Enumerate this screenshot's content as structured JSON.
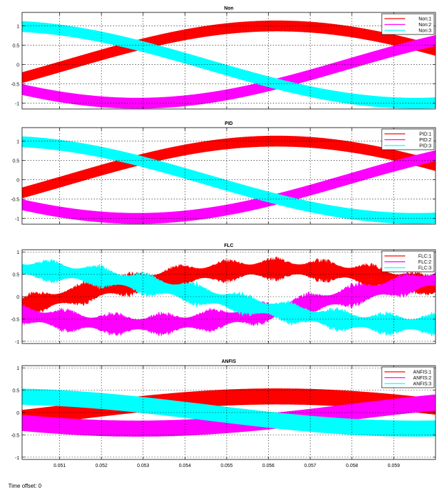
{
  "chart_data": [
    {
      "type": "line",
      "title": "Non",
      "xlim": [
        0.0501,
        0.06
      ],
      "ylim": [
        -1.15,
        1.35
      ],
      "yticks": [
        1,
        0.5,
        0,
        -0.5,
        -1
      ],
      "ytick_labels": [
        "1",
        "0.5",
        "0",
        "-0.5",
        "-1"
      ],
      "xticks": [
        0.051,
        0.052,
        0.053,
        0.054,
        0.055,
        0.056,
        0.057,
        0.058,
        0.059
      ],
      "xtick_labels": [],
      "grid": true,
      "legend_position": "top-right",
      "series": [
        {
          "name": "Non:1",
          "color": "#ff0000",
          "amplitude": 1.0,
          "phase_deg": 0,
          "band": 0.28,
          "noise": 0
        },
        {
          "name": "Non:2",
          "color": "#ff00ff",
          "amplitude": 1.0,
          "phase_deg": -120,
          "band": 0.28,
          "noise": 0
        },
        {
          "name": "Non:3",
          "color": "#00ffff",
          "amplitude": 1.0,
          "phase_deg": 120,
          "band": 0.28,
          "noise": 0
        }
      ]
    },
    {
      "type": "line",
      "title": "PID",
      "xlim": [
        0.0501,
        0.06
      ],
      "ylim": [
        -1.15,
        1.35
      ],
      "yticks": [
        1,
        0.5,
        0,
        -0.5,
        -1
      ],
      "ytick_labels": [
        "1",
        "0.5",
        "0",
        "-0.5",
        "-1"
      ],
      "xticks": [
        0.051,
        0.052,
        0.053,
        0.054,
        0.055,
        0.056,
        0.057,
        0.058,
        0.059
      ],
      "xtick_labels": [],
      "grid": true,
      "legend_position": "top-right",
      "series": [
        {
          "name": "PID:1",
          "color": "#ff0000",
          "amplitude": 1.0,
          "phase_deg": 0,
          "band": 0.28,
          "noise": 0
        },
        {
          "name": "PID:2",
          "color": "#ff00ff",
          "amplitude": 1.0,
          "phase_deg": -120,
          "band": 0.28,
          "noise": 0
        },
        {
          "name": "PID:3",
          "color": "#00ffff",
          "amplitude": 1.0,
          "phase_deg": 120,
          "band": 0.28,
          "noise": 0
        }
      ]
    },
    {
      "type": "line",
      "title": "FLC",
      "xlim": [
        0.0501,
        0.06
      ],
      "ylim": [
        -1.05,
        1.05
      ],
      "yticks": [
        1,
        0.5,
        0,
        -0.5,
        -1
      ],
      "ytick_labels": [
        "1",
        "0.5",
        "0",
        "-0.5",
        "-1"
      ],
      "xticks": [
        0.051,
        0.052,
        0.053,
        0.054,
        0.055,
        0.056,
        0.057,
        0.058,
        0.059
      ],
      "xtick_labels": [],
      "grid": true,
      "legend_position": "top-right",
      "series": [
        {
          "name": "FLC:1",
          "color": "#ff0000",
          "amplitude": 0.62,
          "phase_deg": 0,
          "band": 0.22,
          "noise": 0.18
        },
        {
          "name": "FLC:2",
          "color": "#ff00ff",
          "amplitude": 0.62,
          "phase_deg": -120,
          "band": 0.22,
          "noise": 0.18
        },
        {
          "name": "FLC:3",
          "color": "#00ffff",
          "amplitude": 0.62,
          "phase_deg": 120,
          "band": 0.22,
          "noise": 0.18
        }
      ]
    },
    {
      "type": "line",
      "title": "ANFIS",
      "xlim": [
        0.0501,
        0.06
      ],
      "ylim": [
        -1.05,
        1.05
      ],
      "yticks": [
        1,
        0.5,
        0,
        -0.5,
        -1
      ],
      "ytick_labels": [
        "1",
        "0.5",
        "0",
        "-0.5",
        "-1"
      ],
      "xticks": [
        0.051,
        0.052,
        0.053,
        0.054,
        0.055,
        0.056,
        0.057,
        0.058,
        0.059
      ],
      "xtick_labels": [
        "0.051",
        "0.052",
        "0.053",
        "0.054",
        "0.055",
        "0.056",
        "0.057",
        "0.058",
        "0.059"
      ],
      "grid": true,
      "legend_position": "top-right",
      "series": [
        {
          "name": "ANFIS:1",
          "color": "#ff0000",
          "amplitude": 0.36,
          "phase_deg": 0,
          "band": 0.36,
          "noise": 0
        },
        {
          "name": "ANFIS:2",
          "color": "#ff00ff",
          "amplitude": 0.36,
          "phase_deg": -120,
          "band": 0.36,
          "noise": 0
        },
        {
          "name": "ANFIS:3",
          "color": "#00ffff",
          "amplitude": 0.36,
          "phase_deg": 120,
          "band": 0.36,
          "noise": 0
        }
      ]
    }
  ],
  "signal_period": 0.02,
  "signal_t0": 0.0512,
  "footer": {
    "time_offset": "Time offset: 0"
  }
}
